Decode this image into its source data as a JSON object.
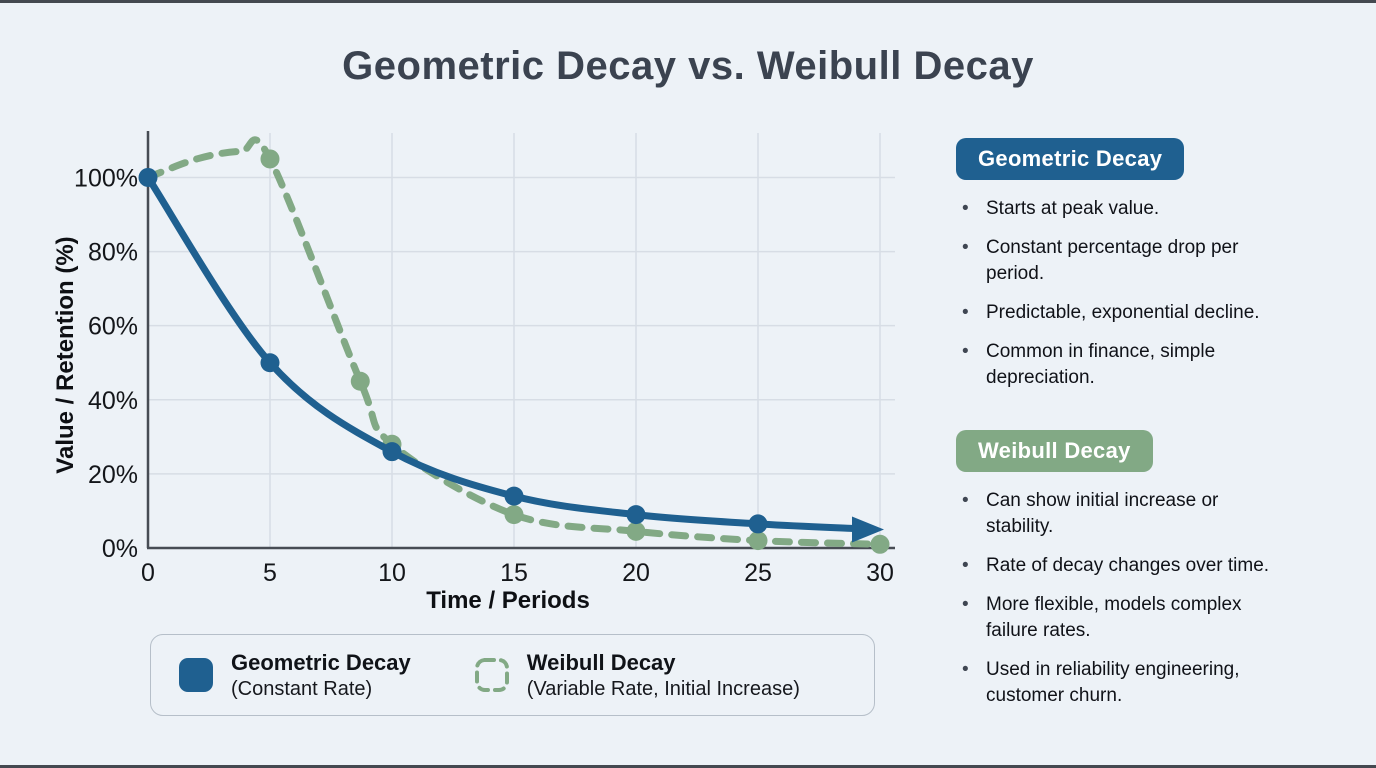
{
  "page": {
    "title": "Geometric Decay vs. Weibull Decay",
    "background": "#edf2f7"
  },
  "colors": {
    "geometric_blue": "#1f6090",
    "weibull_green": "#82a985",
    "grid": "#d7dde5",
    "axis": "#474c54",
    "title_text": "#3b4350"
  },
  "chart_data": {
    "type": "line",
    "title": "Geometric Decay vs. Weibull Decay",
    "xlabel": "Time / Periods",
    "ylabel": "Value / Retention (%)",
    "xlim": [
      0,
      30
    ],
    "ylim": [
      0,
      112
    ],
    "grid": true,
    "legend_position": "bottom",
    "x_ticks": [
      0,
      5,
      10,
      15,
      20,
      25,
      30
    ],
    "y_ticks": [
      {
        "v": 0,
        "label": "0%"
      },
      {
        "v": 20,
        "label": "20%"
      },
      {
        "v": 40,
        "label": "40%"
      },
      {
        "v": 60,
        "label": "60%"
      },
      {
        "v": 80,
        "label": "80%"
      },
      {
        "v": 100,
        "label": "100%"
      }
    ],
    "series": [
      {
        "name": "Geometric Decay (Constant Rate)",
        "color": "#1f6090",
        "style": "solid",
        "arrow_end": true,
        "x": [
          0,
          5,
          10,
          15,
          20,
          25,
          30
        ],
        "values": [
          100,
          50,
          26,
          14,
          9,
          6.5,
          5
        ],
        "markers": [
          [
            0,
            100
          ],
          [
            5,
            50
          ],
          [
            10,
            26
          ],
          [
            15,
            14
          ],
          [
            20,
            9
          ],
          [
            25,
            6.5
          ]
        ]
      },
      {
        "name": "Weibull Decay (Variable Rate, Initial Increase)",
        "color": "#82a985",
        "style": "dashed",
        "x": [
          0,
          2,
          3.8,
          5,
          8.7,
          10,
          15,
          20,
          25,
          30
        ],
        "values": [
          100,
          105,
          107,
          105,
          45,
          28,
          9,
          4.5,
          2,
          1
        ],
        "markers": [
          [
            5,
            105
          ],
          [
            8.7,
            45
          ],
          [
            10,
            28
          ],
          [
            15,
            9
          ],
          [
            20,
            4.5
          ],
          [
            25,
            2
          ],
          [
            30,
            1
          ]
        ]
      }
    ]
  },
  "axes": {
    "x_title": "Time / Periods",
    "y_title": "Value / Retention (%)"
  },
  "legend": {
    "items": [
      {
        "label": "Geometric Decay",
        "sublabel": "(Constant Rate)",
        "color": "#1f6090",
        "swatch": "solid"
      },
      {
        "label": "Weibull Decay",
        "sublabel": "(Variable Rate, Initial Increase)",
        "color": "#82a985",
        "swatch": "dashed"
      }
    ]
  },
  "panels": [
    {
      "title": "Geometric Decay",
      "color": "#1f6090",
      "bullets": [
        "Starts at peak value.",
        "Constant percentage drop per\nperiod.",
        "Predictable, exponential decline.",
        "Common in finance, simple\ndepreciation."
      ]
    },
    {
      "title": "Weibull Decay",
      "color": "#82a985",
      "bullets": [
        "Can show initial increase or\nstability.",
        "Rate of decay changes over time.",
        "More flexible, models complex\nfailure rates.",
        "Used in reliability engineering,\ncustomer churn."
      ]
    }
  ]
}
